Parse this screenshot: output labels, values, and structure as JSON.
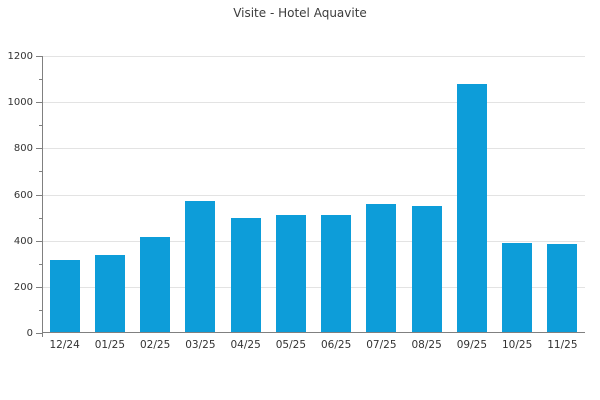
{
  "chart_data": {
    "type": "bar",
    "title": "Visite - Hotel Aquavite",
    "categories": [
      "12/24",
      "01/25",
      "02/25",
      "03/25",
      "04/25",
      "05/25",
      "06/25",
      "07/25",
      "08/25",
      "09/25",
      "10/25",
      "11/25"
    ],
    "values": [
      315,
      340,
      415,
      570,
      500,
      510,
      510,
      560,
      550,
      1080,
      390,
      385
    ],
    "xlabel": "",
    "ylabel": "",
    "ylim": [
      0,
      1200
    ],
    "y_major_ticks": [
      0,
      200,
      400,
      600,
      800,
      1000,
      1200
    ],
    "y_minor_step": 100,
    "grid": "horizontal-major",
    "legend": "none",
    "colors": {
      "bar": "#0d9dd9",
      "axis": "#808080",
      "grid": "#e3e3e3",
      "tick": "#333333",
      "title": "#3c3c3c",
      "bg": "#ffffff"
    }
  }
}
